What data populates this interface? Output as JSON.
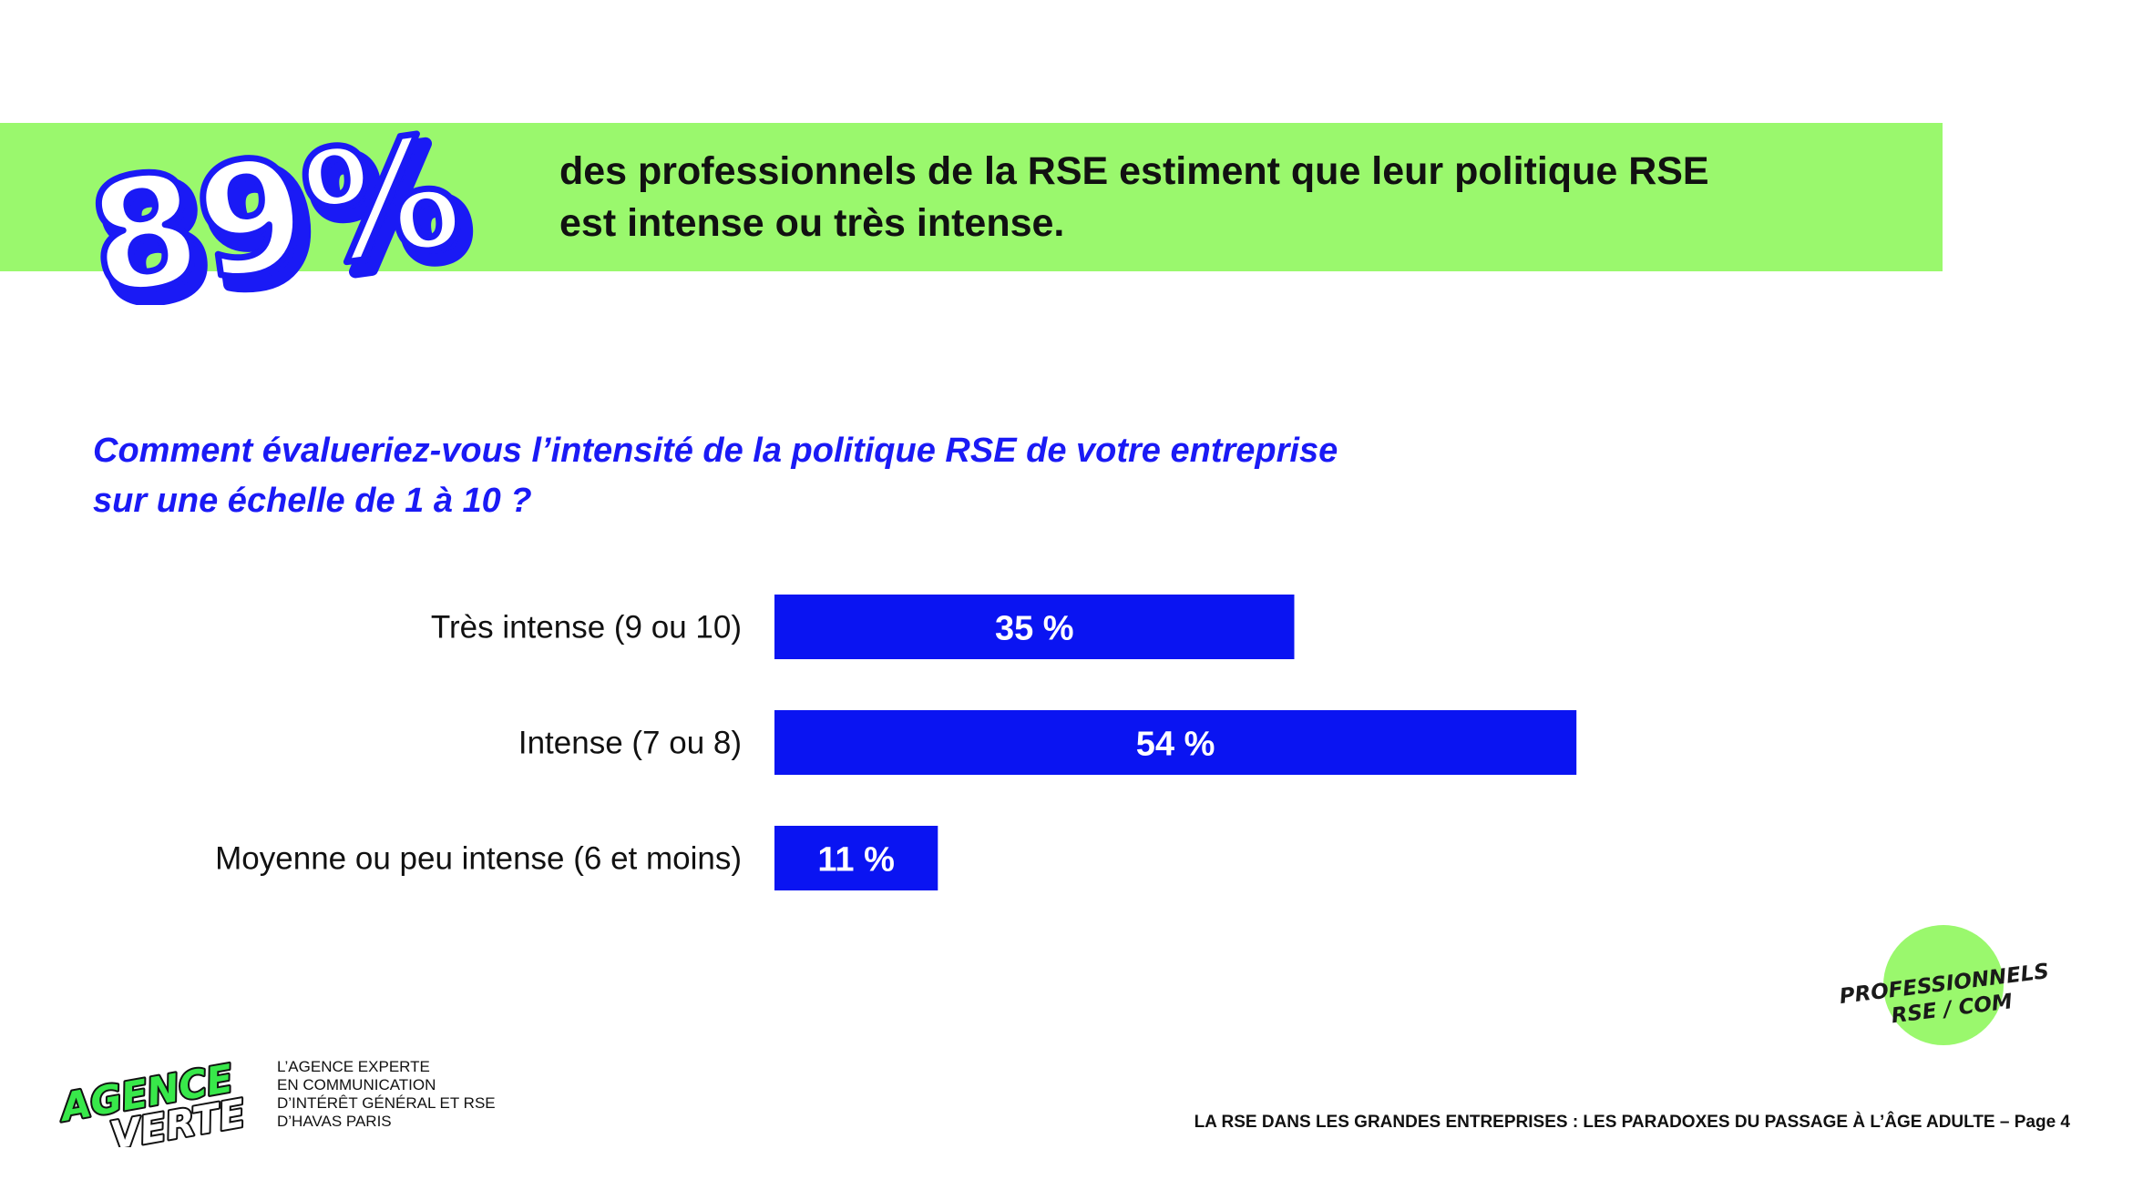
{
  "header": {
    "stat": "89%",
    "headline_line1": "des professionnels de la RSE estiment que leur politique RSE",
    "headline_line2": "est intense ou très intense."
  },
  "question": {
    "line1": "Comment évalueriez-vous l’intensité de la politique RSE de votre entreprise",
    "line2": "sur une échelle de 1 à 10 ?"
  },
  "chart_data": {
    "type": "bar",
    "orientation": "horizontal",
    "categories": [
      "Très intense (9 ou 10)",
      "Intense (7 ou 8)",
      "Moyenne ou peu intense (6 et moins)"
    ],
    "values": [
      35,
      54,
      11
    ],
    "data_labels": [
      "35 %",
      "54 %",
      "11 %"
    ],
    "unit": "%",
    "xlim": [
      0,
      100
    ],
    "grid": false,
    "colors": {
      "bar": "#0a14f2",
      "label": "#ffffff"
    }
  },
  "footer": {
    "logo_line1": "AGENCE",
    "logo_line2": "VERTE",
    "tagline": [
      "L’AGENCE EXPERTE",
      "EN COMMUNICATION",
      "D’INTÉRÊT GÉNÉRAL ET RSE",
      "D’HAVAS PARIS"
    ],
    "badge_line1": "PROFESSIONNELS",
    "badge_line2": "RSE / COM",
    "page_text": "LA RSE DANS LES GRANDES ENTREPRISES : LES PARADOXES DU PASSAGE À L’ÂGE ADULTE – Page 4"
  },
  "colors": {
    "green": "#9af86d",
    "blue": "#0a14f2",
    "question_blue": "#1a1af5"
  }
}
